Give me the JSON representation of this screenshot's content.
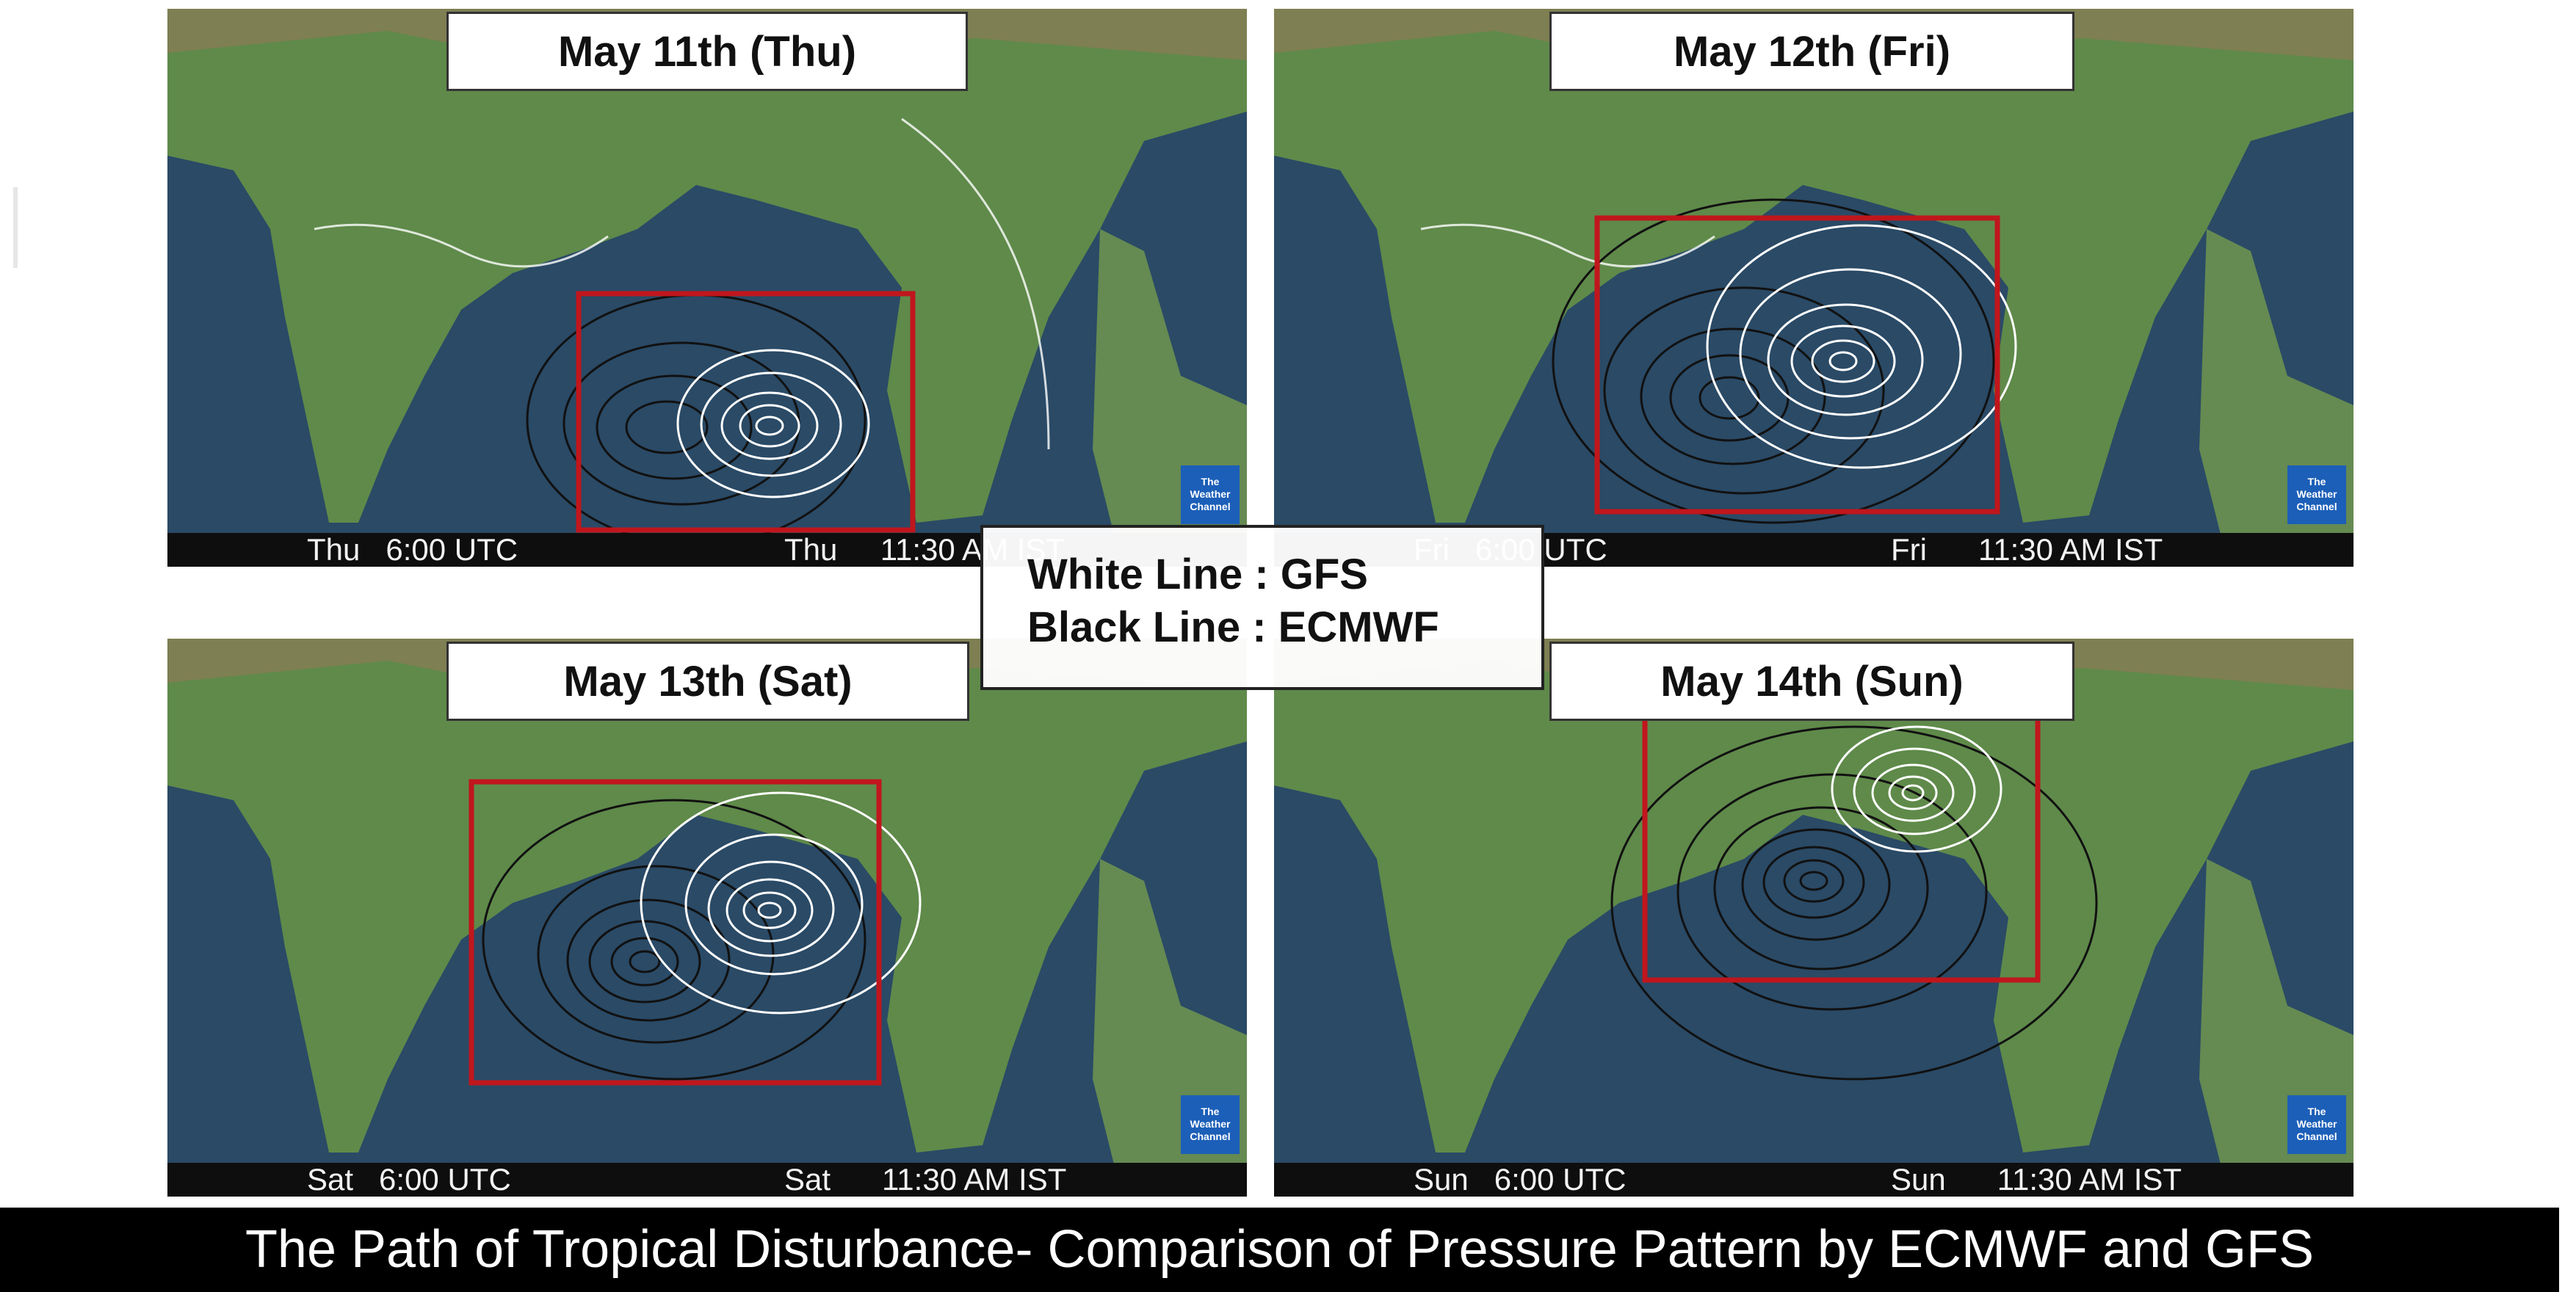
{
  "panels": [
    {
      "title": "May 11th (Thu)",
      "footer_left": "Thu   6:00 UTC",
      "footer_right": "Thu     11:30 AM IST"
    },
    {
      "title": "May 12th (Fri)",
      "footer_left": "Fri   6:00 UTC",
      "footer_right": "Fri      11:30 AM IST"
    },
    {
      "title": "May 13th (Sat)",
      "footer_left": "Sat   6:00 UTC",
      "footer_right": "Sat      11:30 AM IST"
    },
    {
      "title": "May 14th (Sun)",
      "footer_left": "Sun   6:00 UTC",
      "footer_right": "Sun      11:30 AM IST"
    }
  ],
  "legend": {
    "white_line": "White Line :  GFS",
    "black_line": "Black Line : ECMWF"
  },
  "brand": "The Weather Channel",
  "caption": "The Path of Tropical Disturbance- Comparison of Pressure Pattern by ECMWF and GFS",
  "colors": {
    "highlight_box": "#c0161c",
    "gfs_line": "#ffffff",
    "ecmwf_line": "#111111",
    "sea": "#2a4a66",
    "land": "#5f8a4a"
  }
}
